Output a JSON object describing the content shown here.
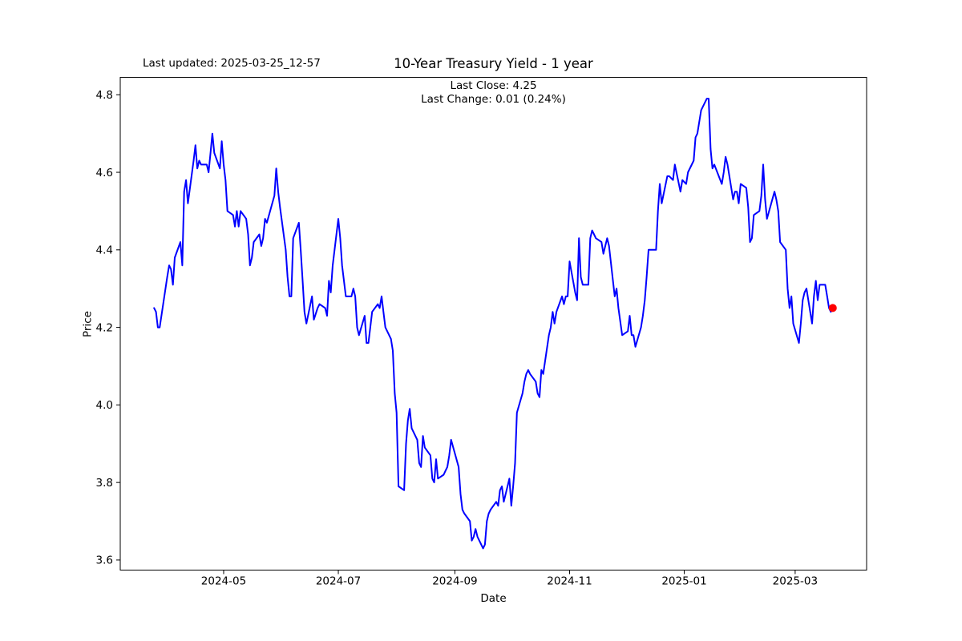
{
  "annotations": {
    "last_updated": "Last updated: 2025-03-25_12-57"
  },
  "chart_data": {
    "type": "line",
    "title": "10-Year Treasury Yield - 1 year",
    "subtitle_lines": [
      "Last Close: 4.25",
      "Last Change: 0.01 (0.24%)"
    ],
    "last_close": 4.25,
    "last_change": "0.01 (0.24%)",
    "xlabel": "Date",
    "ylabel": "Price",
    "grid": false,
    "legend": null,
    "line_color": "#0000ff",
    "marker_color": "#ff0000",
    "axis_color": "#000000",
    "text_color": "#000000",
    "xlim": [
      "2024-03-07",
      "2025-04-08"
    ],
    "ylim": [
      3.574,
      4.845
    ],
    "y_ticks": [
      "3.6",
      "3.8",
      "4.0",
      "4.2",
      "4.4",
      "4.6",
      "4.8"
    ],
    "x_ticks": [
      {
        "date": "2024-05-01",
        "label": "2024-05"
      },
      {
        "date": "2024-07-01",
        "label": "2024-07"
      },
      {
        "date": "2024-09-01",
        "label": "2024-09"
      },
      {
        "date": "2024-11-01",
        "label": "2024-11"
      },
      {
        "date": "2025-01-01",
        "label": "2025-01"
      },
      {
        "date": "2025-03-01",
        "label": "2025-03"
      }
    ],
    "series": [
      {
        "name": "10-Year Treasury Yield",
        "points": [
          [
            "2024-03-25",
            4.25
          ],
          [
            "2024-03-26",
            4.24
          ],
          [
            "2024-03-27",
            4.2
          ],
          [
            "2024-03-28",
            4.2
          ],
          [
            "2024-04-01",
            4.33
          ],
          [
            "2024-04-02",
            4.36
          ],
          [
            "2024-04-03",
            4.35
          ],
          [
            "2024-04-04",
            4.31
          ],
          [
            "2024-04-05",
            4.38
          ],
          [
            "2024-04-08",
            4.42
          ],
          [
            "2024-04-09",
            4.36
          ],
          [
            "2024-04-10",
            4.55
          ],
          [
            "2024-04-11",
            4.58
          ],
          [
            "2024-04-12",
            4.52
          ],
          [
            "2024-04-15",
            4.63
          ],
          [
            "2024-04-16",
            4.67
          ],
          [
            "2024-04-17",
            4.61
          ],
          [
            "2024-04-18",
            4.63
          ],
          [
            "2024-04-19",
            4.62
          ],
          [
            "2024-04-22",
            4.62
          ],
          [
            "2024-04-23",
            4.6
          ],
          [
            "2024-04-24",
            4.65
          ],
          [
            "2024-04-25",
            4.7
          ],
          [
            "2024-04-26",
            4.65
          ],
          [
            "2024-04-29",
            4.61
          ],
          [
            "2024-04-30",
            4.68
          ],
          [
            "2024-05-01",
            4.62
          ],
          [
            "2024-05-02",
            4.58
          ],
          [
            "2024-05-03",
            4.5
          ],
          [
            "2024-05-06",
            4.49
          ],
          [
            "2024-05-07",
            4.46
          ],
          [
            "2024-05-08",
            4.5
          ],
          [
            "2024-05-09",
            4.46
          ],
          [
            "2024-05-10",
            4.5
          ],
          [
            "2024-05-13",
            4.48
          ],
          [
            "2024-05-14",
            4.44
          ],
          [
            "2024-05-15",
            4.36
          ],
          [
            "2024-05-16",
            4.38
          ],
          [
            "2024-05-17",
            4.42
          ],
          [
            "2024-05-20",
            4.44
          ],
          [
            "2024-05-21",
            4.41
          ],
          [
            "2024-05-22",
            4.43
          ],
          [
            "2024-05-23",
            4.48
          ],
          [
            "2024-05-24",
            4.47
          ],
          [
            "2024-05-28",
            4.54
          ],
          [
            "2024-05-29",
            4.61
          ],
          [
            "2024-05-30",
            4.55
          ],
          [
            "2024-05-31",
            4.51
          ],
          [
            "2024-06-03",
            4.4
          ],
          [
            "2024-06-04",
            4.33
          ],
          [
            "2024-06-05",
            4.28
          ],
          [
            "2024-06-06",
            4.28
          ],
          [
            "2024-06-07",
            4.43
          ],
          [
            "2024-06-10",
            4.47
          ],
          [
            "2024-06-11",
            4.4
          ],
          [
            "2024-06-12",
            4.32
          ],
          [
            "2024-06-13",
            4.24
          ],
          [
            "2024-06-14",
            4.21
          ],
          [
            "2024-06-17",
            4.28
          ],
          [
            "2024-06-18",
            4.22
          ],
          [
            "2024-06-20",
            4.25
          ],
          [
            "2024-06-21",
            4.26
          ],
          [
            "2024-06-24",
            4.25
          ],
          [
            "2024-06-25",
            4.23
          ],
          [
            "2024-06-26",
            4.32
          ],
          [
            "2024-06-27",
            4.29
          ],
          [
            "2024-06-28",
            4.36
          ],
          [
            "2024-07-01",
            4.48
          ],
          [
            "2024-07-02",
            4.43
          ],
          [
            "2024-07-03",
            4.36
          ],
          [
            "2024-07-05",
            4.28
          ],
          [
            "2024-07-08",
            4.28
          ],
          [
            "2024-07-09",
            4.3
          ],
          [
            "2024-07-10",
            4.28
          ],
          [
            "2024-07-11",
            4.2
          ],
          [
            "2024-07-12",
            4.18
          ],
          [
            "2024-07-15",
            4.23
          ],
          [
            "2024-07-16",
            4.16
          ],
          [
            "2024-07-17",
            4.16
          ],
          [
            "2024-07-18",
            4.2
          ],
          [
            "2024-07-19",
            4.24
          ],
          [
            "2024-07-22",
            4.26
          ],
          [
            "2024-07-23",
            4.25
          ],
          [
            "2024-07-24",
            4.28
          ],
          [
            "2024-07-25",
            4.24
          ],
          [
            "2024-07-26",
            4.2
          ],
          [
            "2024-07-29",
            4.17
          ],
          [
            "2024-07-30",
            4.14
          ],
          [
            "2024-07-31",
            4.03
          ],
          [
            "2024-08-01",
            3.98
          ],
          [
            "2024-08-02",
            3.79
          ],
          [
            "2024-08-05",
            3.78
          ],
          [
            "2024-08-06",
            3.9
          ],
          [
            "2024-08-07",
            3.96
          ],
          [
            "2024-08-08",
            3.99
          ],
          [
            "2024-08-09",
            3.94
          ],
          [
            "2024-08-12",
            3.91
          ],
          [
            "2024-08-13",
            3.85
          ],
          [
            "2024-08-14",
            3.84
          ],
          [
            "2024-08-15",
            3.92
          ],
          [
            "2024-08-16",
            3.89
          ],
          [
            "2024-08-19",
            3.87
          ],
          [
            "2024-08-20",
            3.81
          ],
          [
            "2024-08-21",
            3.8
          ],
          [
            "2024-08-22",
            3.86
          ],
          [
            "2024-08-23",
            3.81
          ],
          [
            "2024-08-26",
            3.82
          ],
          [
            "2024-08-27",
            3.83
          ],
          [
            "2024-08-28",
            3.84
          ],
          [
            "2024-08-29",
            3.87
          ],
          [
            "2024-08-30",
            3.91
          ],
          [
            "2024-09-03",
            3.84
          ],
          [
            "2024-09-04",
            3.77
          ],
          [
            "2024-09-05",
            3.73
          ],
          [
            "2024-09-06",
            3.72
          ],
          [
            "2024-09-09",
            3.7
          ],
          [
            "2024-09-10",
            3.65
          ],
          [
            "2024-09-11",
            3.66
          ],
          [
            "2024-09-12",
            3.68
          ],
          [
            "2024-09-13",
            3.66
          ],
          [
            "2024-09-16",
            3.63
          ],
          [
            "2024-09-17",
            3.64
          ],
          [
            "2024-09-18",
            3.7
          ],
          [
            "2024-09-19",
            3.72
          ],
          [
            "2024-09-20",
            3.73
          ],
          [
            "2024-09-23",
            3.75
          ],
          [
            "2024-09-24",
            3.74
          ],
          [
            "2024-09-25",
            3.78
          ],
          [
            "2024-09-26",
            3.79
          ],
          [
            "2024-09-27",
            3.75
          ],
          [
            "2024-09-30",
            3.81
          ],
          [
            "2024-10-01",
            3.74
          ],
          [
            "2024-10-02",
            3.79
          ],
          [
            "2024-10-03",
            3.85
          ],
          [
            "2024-10-04",
            3.98
          ],
          [
            "2024-10-07",
            4.03
          ],
          [
            "2024-10-08",
            4.06
          ],
          [
            "2024-10-09",
            4.08
          ],
          [
            "2024-10-10",
            4.09
          ],
          [
            "2024-10-11",
            4.08
          ],
          [
            "2024-10-14",
            4.06
          ],
          [
            "2024-10-15",
            4.03
          ],
          [
            "2024-10-16",
            4.02
          ],
          [
            "2024-10-17",
            4.09
          ],
          [
            "2024-10-18",
            4.08
          ],
          [
            "2024-10-21",
            4.18
          ],
          [
            "2024-10-22",
            4.2
          ],
          [
            "2024-10-23",
            4.24
          ],
          [
            "2024-10-24",
            4.21
          ],
          [
            "2024-10-25",
            4.24
          ],
          [
            "2024-10-28",
            4.28
          ],
          [
            "2024-10-29",
            4.26
          ],
          [
            "2024-10-30",
            4.28
          ],
          [
            "2024-10-31",
            4.28
          ],
          [
            "2024-11-01",
            4.37
          ],
          [
            "2024-11-04",
            4.29
          ],
          [
            "2024-11-05",
            4.27
          ],
          [
            "2024-11-06",
            4.43
          ],
          [
            "2024-11-07",
            4.33
          ],
          [
            "2024-11-08",
            4.31
          ],
          [
            "2024-11-11",
            4.31
          ],
          [
            "2024-11-12",
            4.43
          ],
          [
            "2024-11-13",
            4.45
          ],
          [
            "2024-11-14",
            4.44
          ],
          [
            "2024-11-15",
            4.43
          ],
          [
            "2024-11-18",
            4.42
          ],
          [
            "2024-11-19",
            4.39
          ],
          [
            "2024-11-20",
            4.41
          ],
          [
            "2024-11-21",
            4.43
          ],
          [
            "2024-11-22",
            4.41
          ],
          [
            "2024-11-25",
            4.28
          ],
          [
            "2024-11-26",
            4.3
          ],
          [
            "2024-11-27",
            4.25
          ],
          [
            "2024-11-29",
            4.18
          ],
          [
            "2024-12-02",
            4.19
          ],
          [
            "2024-12-03",
            4.23
          ],
          [
            "2024-12-04",
            4.18
          ],
          [
            "2024-12-05",
            4.18
          ],
          [
            "2024-12-06",
            4.15
          ],
          [
            "2024-12-09",
            4.2
          ],
          [
            "2024-12-10",
            4.23
          ],
          [
            "2024-12-11",
            4.27
          ],
          [
            "2024-12-12",
            4.33
          ],
          [
            "2024-12-13",
            4.4
          ],
          [
            "2024-12-16",
            4.4
          ],
          [
            "2024-12-17",
            4.4
          ],
          [
            "2024-12-18",
            4.5
          ],
          [
            "2024-12-19",
            4.57
          ],
          [
            "2024-12-20",
            4.52
          ],
          [
            "2024-12-23",
            4.59
          ],
          [
            "2024-12-24",
            4.59
          ],
          [
            "2024-12-26",
            4.58
          ],
          [
            "2024-12-27",
            4.62
          ],
          [
            "2024-12-30",
            4.55
          ],
          [
            "2024-12-31",
            4.58
          ],
          [
            "2025-01-02",
            4.57
          ],
          [
            "2025-01-03",
            4.6
          ],
          [
            "2025-01-06",
            4.63
          ],
          [
            "2025-01-07",
            4.69
          ],
          [
            "2025-01-08",
            4.7
          ],
          [
            "2025-01-10",
            4.76
          ],
          [
            "2025-01-13",
            4.79
          ],
          [
            "2025-01-14",
            4.79
          ],
          [
            "2025-01-15",
            4.66
          ],
          [
            "2025-01-16",
            4.61
          ],
          [
            "2025-01-17",
            4.62
          ],
          [
            "2025-01-21",
            4.57
          ],
          [
            "2025-01-22",
            4.6
          ],
          [
            "2025-01-23",
            4.64
          ],
          [
            "2025-01-24",
            4.62
          ],
          [
            "2025-01-27",
            4.53
          ],
          [
            "2025-01-28",
            4.55
          ],
          [
            "2025-01-29",
            4.55
          ],
          [
            "2025-01-30",
            4.52
          ],
          [
            "2025-01-31",
            4.57
          ],
          [
            "2025-02-03",
            4.56
          ],
          [
            "2025-02-04",
            4.51
          ],
          [
            "2025-02-05",
            4.42
          ],
          [
            "2025-02-06",
            4.43
          ],
          [
            "2025-02-07",
            4.49
          ],
          [
            "2025-02-10",
            4.5
          ],
          [
            "2025-02-11",
            4.54
          ],
          [
            "2025-02-12",
            4.62
          ],
          [
            "2025-02-13",
            4.53
          ],
          [
            "2025-02-14",
            4.48
          ],
          [
            "2025-02-18",
            4.55
          ],
          [
            "2025-02-19",
            4.53
          ],
          [
            "2025-02-20",
            4.5
          ],
          [
            "2025-02-21",
            4.42
          ],
          [
            "2025-02-24",
            4.4
          ],
          [
            "2025-02-25",
            4.3
          ],
          [
            "2025-02-26",
            4.25
          ],
          [
            "2025-02-27",
            4.28
          ],
          [
            "2025-02-28",
            4.21
          ],
          [
            "2025-03-03",
            4.16
          ],
          [
            "2025-03-04",
            4.21
          ],
          [
            "2025-03-05",
            4.27
          ],
          [
            "2025-03-06",
            4.29
          ],
          [
            "2025-03-07",
            4.3
          ],
          [
            "2025-03-10",
            4.21
          ],
          [
            "2025-03-11",
            4.28
          ],
          [
            "2025-03-12",
            4.32
          ],
          [
            "2025-03-13",
            4.27
          ],
          [
            "2025-03-14",
            4.31
          ],
          [
            "2025-03-17",
            4.31
          ],
          [
            "2025-03-18",
            4.28
          ],
          [
            "2025-03-19",
            4.25
          ],
          [
            "2025-03-20",
            4.24
          ],
          [
            "2025-03-21",
            4.25
          ]
        ]
      }
    ]
  }
}
